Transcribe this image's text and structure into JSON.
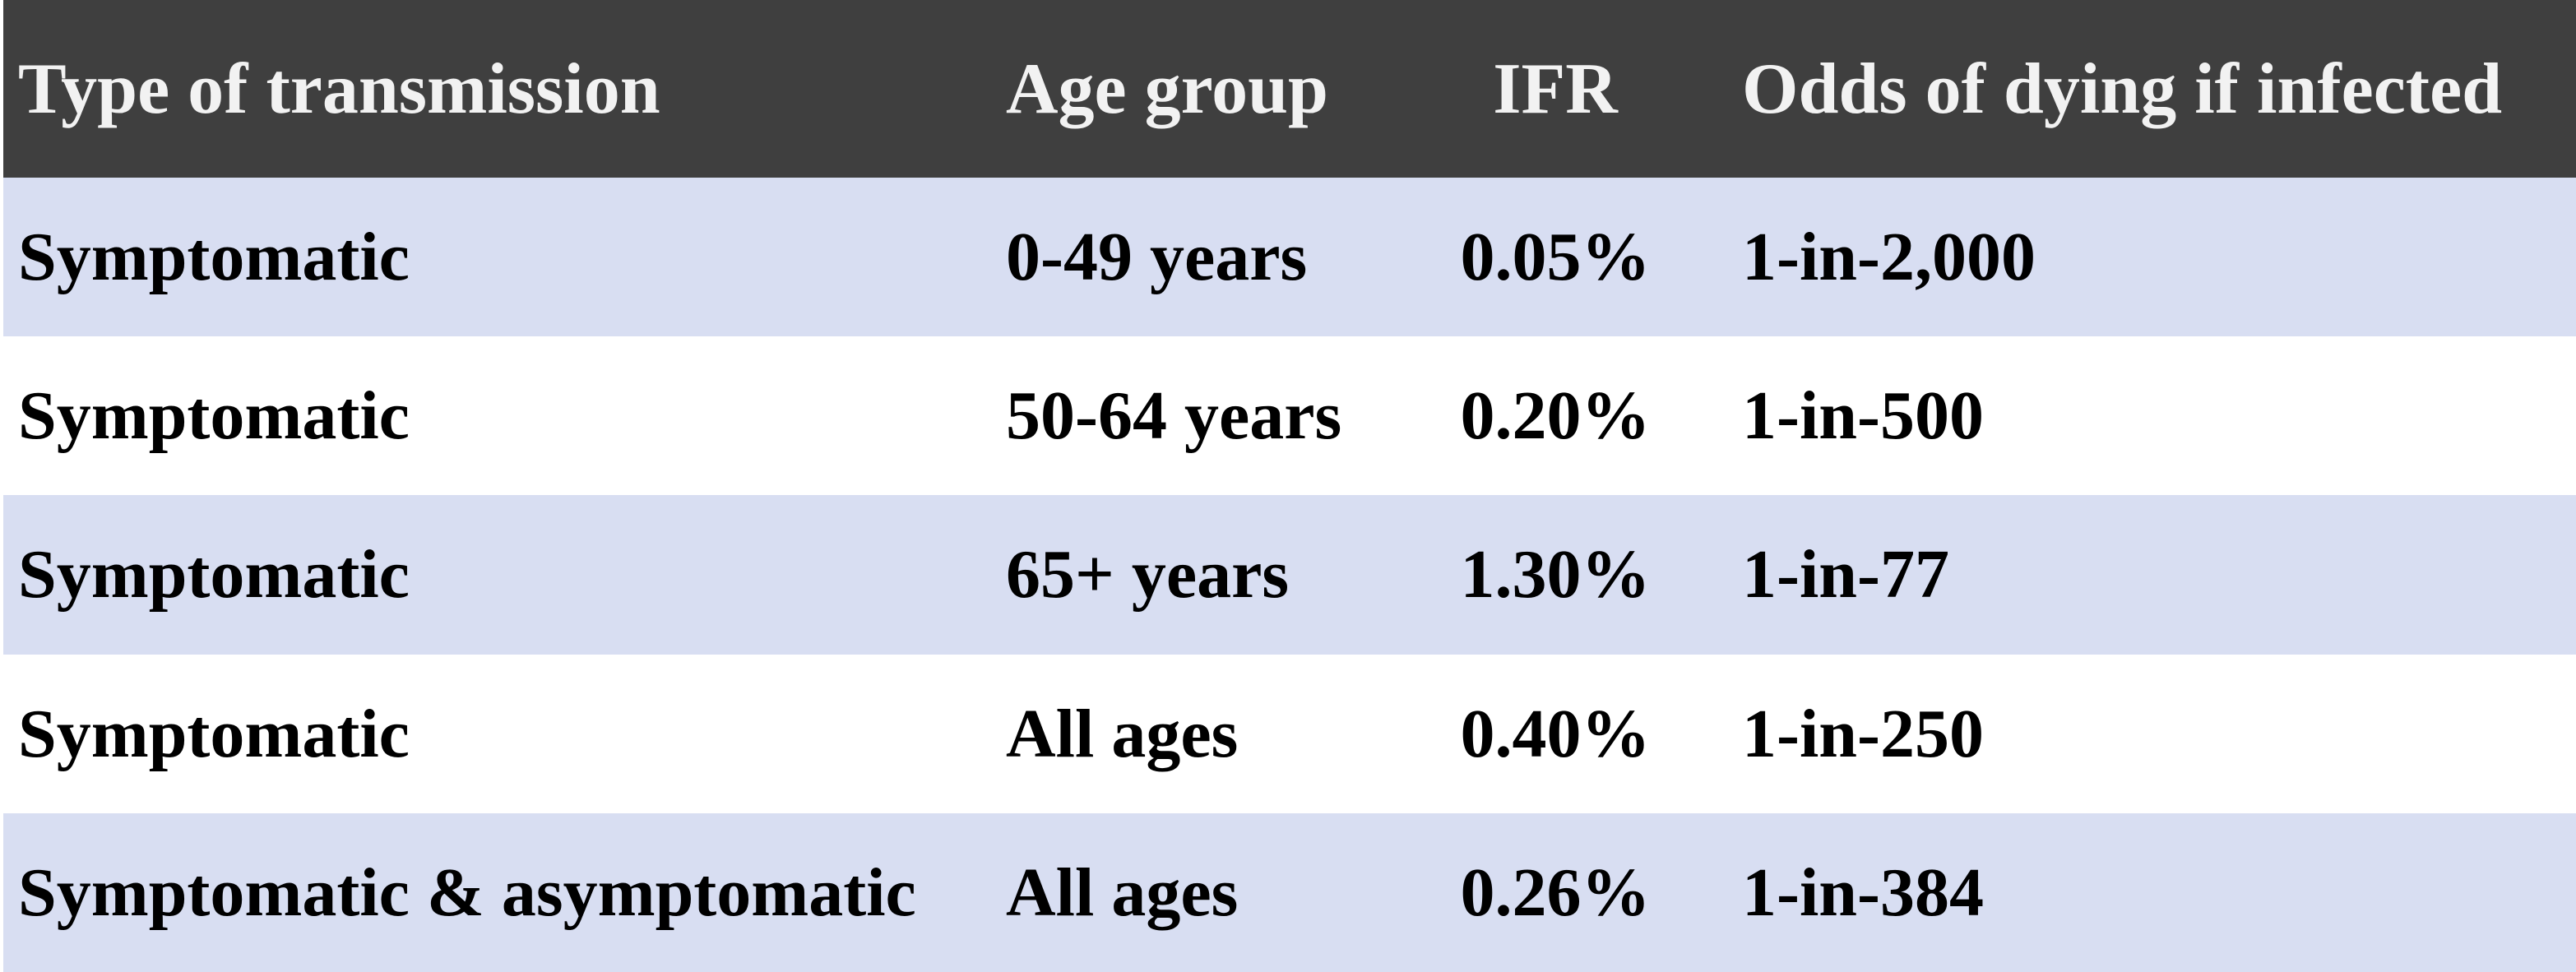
{
  "colors": {
    "header_background": "#3f3f3f",
    "header_text": "#f2f2f2",
    "stripe_row_background": "#d8def2",
    "plain_row_background": "#ffffff",
    "body_text": "#000000"
  },
  "chart_data": {
    "type": "table",
    "columns": [
      "Type of transmission",
      "Age group",
      "IFR",
      "Odds of dying if infected"
    ],
    "rows": [
      [
        "Symptomatic",
        "0-49 years",
        "0.05%",
        "1-in-2,000"
      ],
      [
        "Symptomatic",
        "50-64 years",
        "0.20%",
        "1-in-500"
      ],
      [
        "Symptomatic",
        "65+ years",
        "1.30%",
        "1-in-77"
      ],
      [
        "Symptomatic",
        "All ages",
        "0.40%",
        "1-in-250"
      ],
      [
        "Symptomatic & asymptomatic",
        "All ages",
        "0.26%",
        "1-in-384"
      ]
    ],
    "layout": {
      "striped": true,
      "header_position": "top",
      "column_alignments": [
        "left",
        "left",
        "center",
        "left"
      ]
    }
  }
}
